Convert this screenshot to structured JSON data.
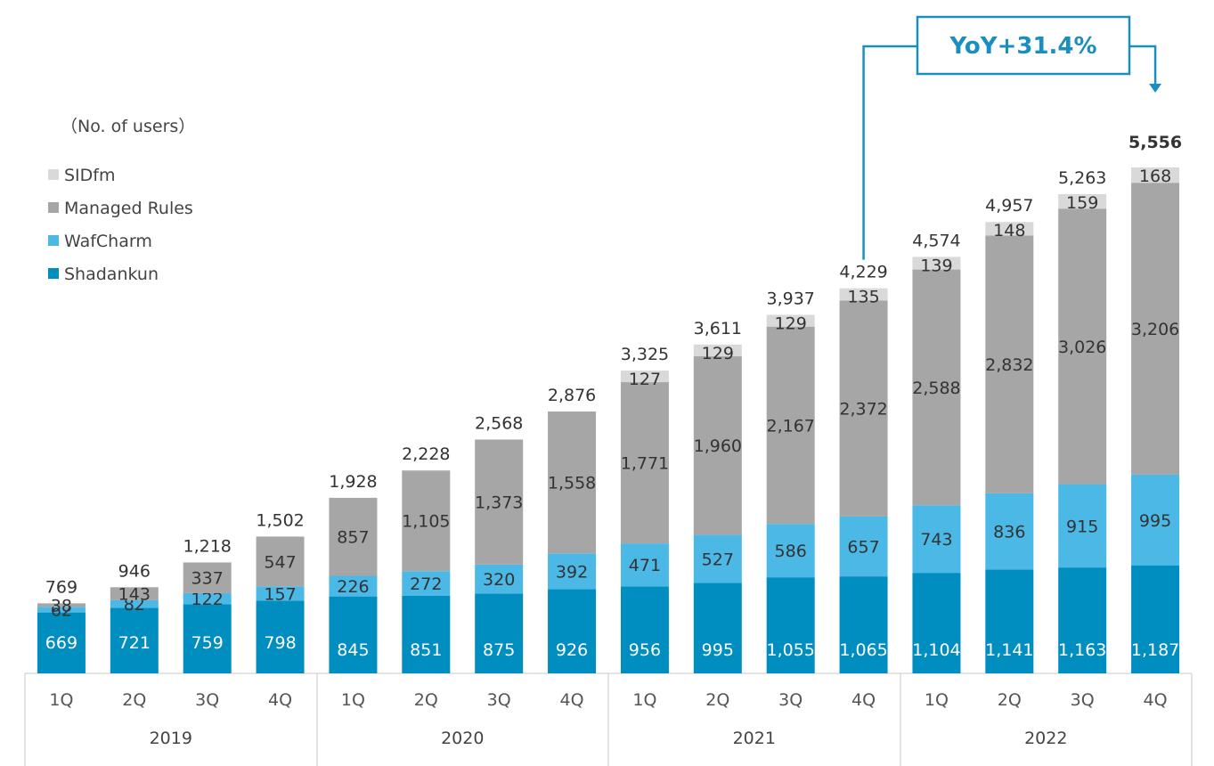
{
  "chart_data": {
    "type": "bar",
    "stacked": true,
    "unit_label": "（No. of users）",
    "years": [
      "2019",
      "2020",
      "2021",
      "2022"
    ],
    "categories": [
      "1Q",
      "2Q",
      "3Q",
      "4Q",
      "1Q",
      "2Q",
      "3Q",
      "4Q",
      "1Q",
      "2Q",
      "3Q",
      "4Q",
      "1Q",
      "2Q",
      "3Q",
      "4Q"
    ],
    "series": [
      {
        "name": "Shadankun",
        "color": "#008dbf",
        "values": [
          669,
          721,
          759,
          798,
          845,
          851,
          875,
          926,
          956,
          995,
          1055,
          1065,
          1104,
          1141,
          1163,
          1187
        ]
      },
      {
        "name": "WafCharm",
        "color": "#4bb8e6",
        "values": [
          62,
          82,
          122,
          157,
          226,
          272,
          320,
          392,
          471,
          527,
          586,
          657,
          743,
          836,
          915,
          995
        ]
      },
      {
        "name": "Managed Rules",
        "color": "#a6a6a6",
        "values": [
          38,
          143,
          337,
          547,
          857,
          1105,
          1373,
          1558,
          1771,
          1960,
          2167,
          2372,
          2588,
          2832,
          3026,
          3206
        ]
      },
      {
        "name": "SIDfm",
        "color": "#d9d9d9",
        "values": [
          null,
          null,
          null,
          null,
          null,
          null,
          null,
          null,
          127,
          129,
          129,
          135,
          139,
          148,
          159,
          168
        ]
      }
    ],
    "value_labels": {
      "Shadankun": [
        "669",
        "721",
        "759",
        "798",
        "845",
        "851",
        "875",
        "926",
        "956",
        "995",
        "1,055",
        "1,065",
        "1,104",
        "1,141",
        "1,163",
        "1,187"
      ],
      "WafCharm": [
        "62",
        "82",
        "122",
        "157",
        "226",
        "272",
        "320",
        "392",
        "471",
        "527",
        "586",
        "657",
        "743",
        "836",
        "915",
        "995"
      ],
      "Managed Rules": [
        "38",
        "143",
        "337",
        "547",
        "857",
        "1,105",
        "1,373",
        "1,558",
        "1,771",
        "1,960",
        "2,167",
        "2,372",
        "2,588",
        "2,832",
        "3,026",
        "3,206"
      ],
      "SIDfm": [
        "",
        "",
        "",
        "",
        "",
        "",
        "",
        "",
        "127",
        "129",
        "129",
        "135",
        "139",
        "148",
        "159",
        "168"
      ]
    },
    "totals": [
      "769",
      "946",
      "1,218",
      "1,502",
      "1,928",
      "2,228",
      "2,568",
      "2,876",
      "3,325",
      "3,611",
      "3,937",
      "4,229",
      "4,574",
      "4,957",
      "5,263",
      "5,556"
    ],
    "ylim": [
      0,
      5556
    ],
    "grid": false,
    "legend_position": "top-left",
    "annotation": {
      "text": "YoY+31.4%",
      "from_index": 11,
      "to_index": 15,
      "color": "#1a8fbf"
    }
  }
}
